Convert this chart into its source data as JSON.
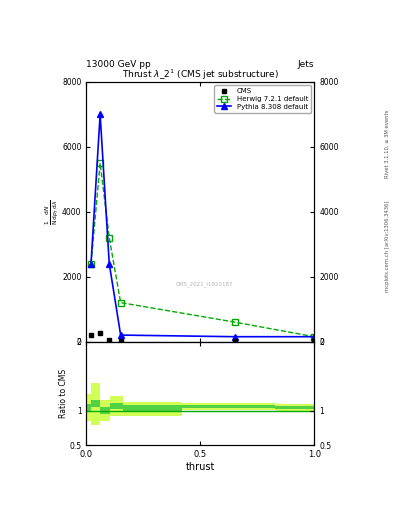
{
  "title": "Thrust $\\lambda\\_2^1$ (CMS jet substructure)",
  "header_left": "13000 GeV pp",
  "header_right": "Jets",
  "right_label_top": "Rivet 3.1.10, ≥ 3M events",
  "right_label_bottom": "mcplots.cern.ch [arXiv:1306.3436]",
  "watermark": "CMS_2021_I1920187",
  "xlabel": "thrust",
  "ylim_main": [
    0,
    8000
  ],
  "ylim_ratio": [
    0.5,
    2.0
  ],
  "cms_x": [
    0.02,
    0.06,
    0.1,
    0.15,
    0.65,
    1.0
  ],
  "cms_y": [
    200,
    250,
    50,
    10,
    10,
    5
  ],
  "herwig_x": [
    0.02,
    0.06,
    0.1,
    0.15,
    0.65,
    1.0
  ],
  "herwig_y": [
    2400,
    5500,
    3200,
    1200,
    600,
    150
  ],
  "pythia_x": [
    0.02,
    0.06,
    0.1,
    0.15,
    0.65,
    1.0
  ],
  "pythia_y": [
    2400,
    7000,
    2400,
    200,
    150,
    150
  ],
  "cms_color": "#000000",
  "herwig_color": "#00aa00",
  "pythia_color": "#0000ff",
  "ratio_x": [
    0.0,
    0.04,
    0.08,
    0.13,
    0.19,
    0.65,
    1.0
  ],
  "ratio_herwig_c": [
    1.05,
    1.1,
    1.0,
    1.07,
    1.03,
    1.06,
    1.05
  ],
  "ratio_inner": [
    0.05,
    0.05,
    0.05,
    0.05,
    0.05,
    0.02,
    0.02
  ],
  "ratio_outer": [
    0.2,
    0.3,
    0.15,
    0.15,
    0.1,
    0.05,
    0.05
  ],
  "inner_band_color": "#44cc44",
  "outer_band_color": "#ccff44",
  "figsize": [
    3.93,
    5.12
  ],
  "dpi": 100
}
